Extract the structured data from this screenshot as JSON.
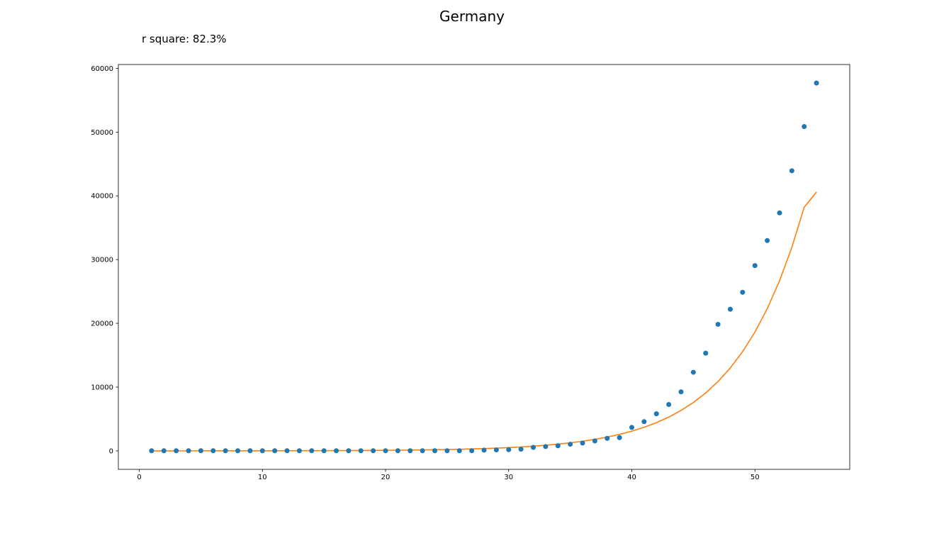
{
  "chart_data": {
    "type": "scatter",
    "title": "Germany",
    "annotation": "r square: 82.3%",
    "xlabel": "",
    "ylabel": "",
    "xlim": [
      -1.7,
      57.7
    ],
    "ylim": [
      -2900,
      60600
    ],
    "x_ticks": [
      0,
      10,
      20,
      30,
      40,
      50
    ],
    "y_ticks": [
      0,
      10000,
      20000,
      30000,
      40000,
      50000,
      60000
    ],
    "grid": false,
    "colors": {
      "points": "#1f77b4",
      "fit": "#ff7f0e"
    },
    "series": [
      {
        "kind": "points",
        "x": [
          1,
          2,
          3,
          4,
          5,
          6,
          7,
          8,
          9,
          10,
          11,
          12,
          13,
          14,
          15,
          16,
          17,
          18,
          19,
          20,
          21,
          22,
          23,
          24,
          25,
          26,
          27,
          28,
          29,
          30,
          31,
          32,
          33,
          34,
          35,
          36,
          37,
          38,
          39,
          40,
          41,
          42,
          43,
          44,
          45,
          46,
          47,
          48,
          49,
          50,
          51,
          52,
          53,
          54,
          55
        ],
        "y": [
          16,
          16,
          16,
          16,
          16,
          16,
          16,
          16,
          16,
          16,
          16,
          16,
          16,
          16,
          16,
          16,
          16,
          16,
          16,
          16,
          16,
          16,
          16,
          16,
          16,
          16,
          26,
          117,
          150,
          188,
          262,
          545,
          670,
          800,
          1040,
          1224,
          1565,
          1966,
          2078,
          3675,
          4585,
          5813,
          7272,
          9257,
          12327,
          15320,
          19848,
          22213,
          24873,
          29056,
          32986,
          37323,
          43938,
          50871,
          57695
        ]
      },
      {
        "kind": "line",
        "x": [
          1,
          2,
          3,
          4,
          5,
          6,
          7,
          8,
          9,
          10,
          11,
          12,
          13,
          14,
          15,
          16,
          17,
          18,
          19,
          20,
          21,
          22,
          23,
          24,
          25,
          26,
          27,
          28,
          29,
          30,
          31,
          32,
          33,
          34,
          35,
          36,
          37,
          38,
          39,
          40,
          41,
          42,
          43,
          44,
          45,
          46,
          47,
          48,
          49,
          50,
          51,
          52,
          53,
          54,
          55
        ],
        "y": [
          3,
          3,
          4,
          5,
          6,
          7,
          8,
          10,
          12,
          14,
          17,
          20,
          24,
          29,
          34,
          41,
          50,
          59,
          71,
          85,
          102,
          122,
          146,
          175,
          209,
          250,
          299,
          358,
          429,
          513,
          614,
          734,
          879,
          1052,
          1259,
          1507,
          1803,
          2158,
          2583,
          3091,
          3699,
          4427,
          5298,
          6341,
          7589,
          9082,
          10869,
          13008,
          15567,
          18630,
          22296,
          26683,
          31933,
          38218,
          40600
        ]
      }
    ]
  }
}
